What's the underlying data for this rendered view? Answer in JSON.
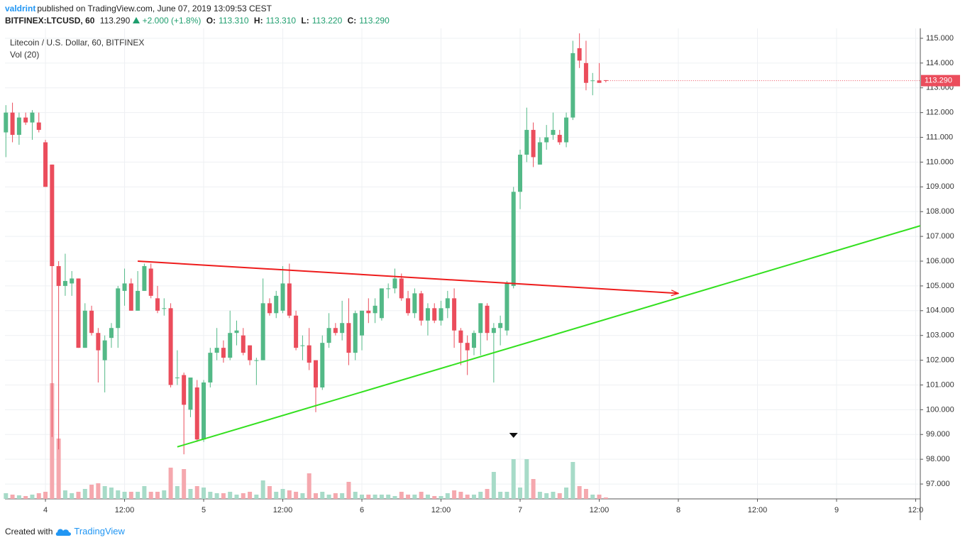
{
  "header": {
    "author": "valdrint",
    "published": "published on TradingView.com, June 07, 2019 13:09:53 CEST",
    "symbol": "BITFINEX:LTCUSD, 60",
    "last": "113.290",
    "change": "+2.000 (+1.8%)",
    "ohlc": [
      {
        "label": "O:",
        "value": "113.310"
      },
      {
        "label": "H:",
        "value": "113.310"
      },
      {
        "label": "L:",
        "value": "113.220"
      },
      {
        "label": "C:",
        "value": "113.290"
      }
    ]
  },
  "chart_data": {
    "type": "candlestick",
    "title": "Litecoin / U.S. Dollar, 60, BITFINEX",
    "volume_label": "Vol (20)",
    "up_color": "#53b987",
    "down_color": "#eb4d5c",
    "volume_up_color": "#a7dbc8",
    "volume_down_color": "#f5a8ae",
    "x": [
      -6,
      -5,
      -4,
      -3,
      -2,
      -1,
      0,
      1,
      2,
      3,
      4,
      5,
      6,
      7,
      8,
      9,
      10,
      11,
      12,
      13,
      14,
      15,
      16,
      17,
      18,
      19,
      20,
      21,
      22,
      23,
      24,
      25,
      26,
      27,
      28,
      29,
      30,
      31,
      32,
      33,
      34,
      35,
      36,
      37,
      38,
      39,
      40,
      41,
      42,
      43,
      44,
      45,
      46,
      47,
      48,
      49,
      50,
      51,
      52,
      53,
      54,
      55,
      56,
      57,
      58,
      59,
      60,
      61,
      62,
      63,
      64,
      65,
      66,
      67,
      68,
      69,
      70,
      71,
      72,
      73,
      74,
      75,
      76,
      77,
      78,
      79,
      80,
      81,
      82,
      83,
      84,
      85
    ],
    "open": [
      111.2,
      112.0,
      111.1,
      111.8,
      111.6,
      111.6,
      110.8,
      109.9,
      105.8,
      105.0,
      105.1,
      105.3,
      102.5,
      104.0,
      103.1,
      102.0,
      102.9,
      103.3,
      104.8,
      105.1,
      104.0,
      104.8,
      105.7,
      104.5,
      104.1,
      104.1,
      101.3,
      101.4,
      100.0,
      100.9,
      98.8,
      101.1,
      102.3,
      102.5,
      102.1,
      103.1,
      103.0,
      102.6,
      102.0,
      102.0,
      104.3,
      103.9,
      104.0,
      105.1,
      103.8,
      102.6,
      102.6,
      102.0,
      100.9,
      102.7,
      103.3,
      103.1,
      103.5,
      102.3,
      103.0,
      104.0,
      103.9,
      103.7,
      104.9,
      104.9,
      105.3,
      104.5,
      103.9,
      104.7,
      103.6,
      104.1,
      103.6,
      104.1,
      104.5,
      103.2,
      102.7,
      102.5,
      103.1,
      104.2,
      103.1,
      103.3,
      103.2,
      105.0,
      108.8,
      110.3,
      111.3,
      109.9,
      110.8,
      111.1,
      111.1,
      110.8,
      111.8,
      114.6,
      114.0,
      113.3,
      113.3,
      113.31
    ],
    "high": [
      112.3,
      112.4,
      112.0,
      112.0,
      112.1,
      112.0,
      110.9,
      109.9,
      106.0,
      106.3,
      105.6,
      105.3,
      104.3,
      104.2,
      103.3,
      103.0,
      103.5,
      105.0,
      105.7,
      105.3,
      105.6,
      105.9,
      105.9,
      105.0,
      104.5,
      104.3,
      102.4,
      101.5,
      101.3,
      101.2,
      101.2,
      102.5,
      103.3,
      102.8,
      104.0,
      103.6,
      103.3,
      102.6,
      102.1,
      105.3,
      104.5,
      104.8,
      105.8,
      105.9,
      104.0,
      103.0,
      103.3,
      102.0,
      103.0,
      103.9,
      103.5,
      104.4,
      104.5,
      104.0,
      104.0,
      104.5,
      104.5,
      104.9,
      105.1,
      105.7,
      105.5,
      104.8,
      104.9,
      104.8,
      104.3,
      104.3,
      104.4,
      104.8,
      104.9,
      103.3,
      103.0,
      103.2,
      104.3,
      104.3,
      103.5,
      103.8,
      105.2,
      109.0,
      110.5,
      112.2,
      111.6,
      111.0,
      111.5,
      112.0,
      111.3,
      112.0,
      114.9,
      115.2,
      114.9,
      113.6,
      114.0,
      113.31
    ],
    "low": [
      110.2,
      110.8,
      110.7,
      111.5,
      110.9,
      111.2,
      109.0,
      98.9,
      98.4,
      104.6,
      104.6,
      102.5,
      102.5,
      103.0,
      101.1,
      100.7,
      102.5,
      102.5,
      104.2,
      104.0,
      104.0,
      104.8,
      104.5,
      103.9,
      103.8,
      100.9,
      101.0,
      98.2,
      99.7,
      98.7,
      98.7,
      100.9,
      102.0,
      101.9,
      102.0,
      102.6,
      102.2,
      101.8,
      101.0,
      102.0,
      103.8,
      103.7,
      103.9,
      103.7,
      102.4,
      102.0,
      101.6,
      99.9,
      100.8,
      102.5,
      103.0,
      102.8,
      101.8,
      102.0,
      102.4,
      103.5,
      103.5,
      103.6,
      104.5,
      104.7,
      104.4,
      103.8,
      103.7,
      103.4,
      103.0,
      103.5,
      103.4,
      103.7,
      102.5,
      101.8,
      101.4,
      102.2,
      102.2,
      102.8,
      101.1,
      102.6,
      103.0,
      104.9,
      108.1,
      110.0,
      109.8,
      109.9,
      110.5,
      110.9,
      110.7,
      110.6,
      111.7,
      113.8,
      112.9,
      112.7,
      113.2,
      113.22
    ],
    "close": [
      112.0,
      111.1,
      111.8,
      111.6,
      112.0,
      111.3,
      109.0,
      105.8,
      105.0,
      105.2,
      105.3,
      102.5,
      104.0,
      103.1,
      102.4,
      102.8,
      103.3,
      104.9,
      105.1,
      104.0,
      104.8,
      105.8,
      104.6,
      104.0,
      104.1,
      101.0,
      101.3,
      100.2,
      101.3,
      98.8,
      101.1,
      102.3,
      102.5,
      102.1,
      103.1,
      103.2,
      102.3,
      102.0,
      102.0,
      104.3,
      103.9,
      104.6,
      105.1,
      103.8,
      102.5,
      102.6,
      101.9,
      100.9,
      102.7,
      103.3,
      103.1,
      103.5,
      102.3,
      103.9,
      104.0,
      103.9,
      104.2,
      104.9,
      104.9,
      105.3,
      104.5,
      103.9,
      104.7,
      103.6,
      104.1,
      103.6,
      104.1,
      104.5,
      103.2,
      102.7,
      102.4,
      103.1,
      104.3,
      103.1,
      103.3,
      103.5,
      105.1,
      108.8,
      110.3,
      111.3,
      110.2,
      110.8,
      111.0,
      111.3,
      110.8,
      111.8,
      114.4,
      114.1,
      113.2,
      113.3,
      113.2,
      113.29
    ],
    "volume": [
      8,
      6,
      5,
      4,
      6,
      8,
      10,
      163,
      85,
      12,
      8,
      10,
      14,
      20,
      22,
      18,
      16,
      12,
      10,
      10,
      10,
      18,
      10,
      10,
      12,
      44,
      18,
      42,
      14,
      18,
      16,
      10,
      8,
      8,
      10,
      6,
      8,
      10,
      6,
      26,
      18,
      10,
      14,
      12,
      10,
      8,
      36,
      8,
      10,
      6,
      8,
      8,
      24,
      10,
      6,
      6,
      6,
      6,
      6,
      4,
      10,
      6,
      6,
      10,
      6,
      4,
      4,
      8,
      12,
      10,
      6,
      6,
      10,
      14,
      38,
      10,
      10,
      56,
      16,
      56,
      28,
      10,
      8,
      10,
      8,
      16,
      52,
      18,
      14,
      6,
      6,
      2
    ],
    "volume_ylim": [
      0,
      663
    ],
    "xlim": [
      -6.14,
      132.7
    ],
    "xticks": [
      {
        "value": 0,
        "label": "4"
      },
      {
        "value": 12,
        "label": "12:00"
      },
      {
        "value": 24,
        "label": "5"
      },
      {
        "value": 36,
        "label": "12:00"
      },
      {
        "value": 48,
        "label": "6"
      },
      {
        "value": 60,
        "label": "12:00"
      },
      {
        "value": 72,
        "label": "7"
      },
      {
        "value": 84,
        "label": "12:00"
      },
      {
        "value": 96,
        "label": "8"
      },
      {
        "value": 108,
        "label": "12:00"
      },
      {
        "value": 120,
        "label": "9"
      },
      {
        "value": 132,
        "label": "12:0"
      }
    ],
    "ylim": [
      96.4,
      115.4
    ],
    "yticks": [
      {
        "value": 97,
        "label": "97.000"
      },
      {
        "value": 98,
        "label": "98.000"
      },
      {
        "value": 99,
        "label": "99.000"
      },
      {
        "value": 100,
        "label": "100.000"
      },
      {
        "value": 101,
        "label": "101.000"
      },
      {
        "value": 102,
        "label": "102.000"
      },
      {
        "value": 103,
        "label": "103.000"
      },
      {
        "value": 104,
        "label": "104.000"
      },
      {
        "value": 105,
        "label": "105.000"
      },
      {
        "value": 106,
        "label": "106.000"
      },
      {
        "value": 107,
        "label": "107.000"
      },
      {
        "value": 108,
        "label": "108.000"
      },
      {
        "value": 109,
        "label": "109.000"
      },
      {
        "value": 110,
        "label": "110.000"
      },
      {
        "value": 111,
        "label": "111.000"
      },
      {
        "value": 112,
        "label": "112.000"
      },
      {
        "value": 113,
        "label": "113.000"
      },
      {
        "value": 114,
        "label": "114.000"
      },
      {
        "value": 115,
        "label": "115.000"
      }
    ],
    "grid": true,
    "last_price": {
      "value": 113.29,
      "label": "113.290",
      "color": "#eb4d5c"
    },
    "trend_lines": [
      {
        "color": "#ee1c1c",
        "x": [
          14,
          96
        ],
        "y": [
          106.0,
          104.7
        ],
        "arrow_end": true
      },
      {
        "color": "#33e01f",
        "x": [
          20,
          132.7
        ],
        "y": [
          98.5,
          107.43
        ],
        "arrow_end": false
      }
    ],
    "event_marker_x": 71
  },
  "footer": {
    "created_with": "Created with",
    "brand": "TradingView"
  }
}
